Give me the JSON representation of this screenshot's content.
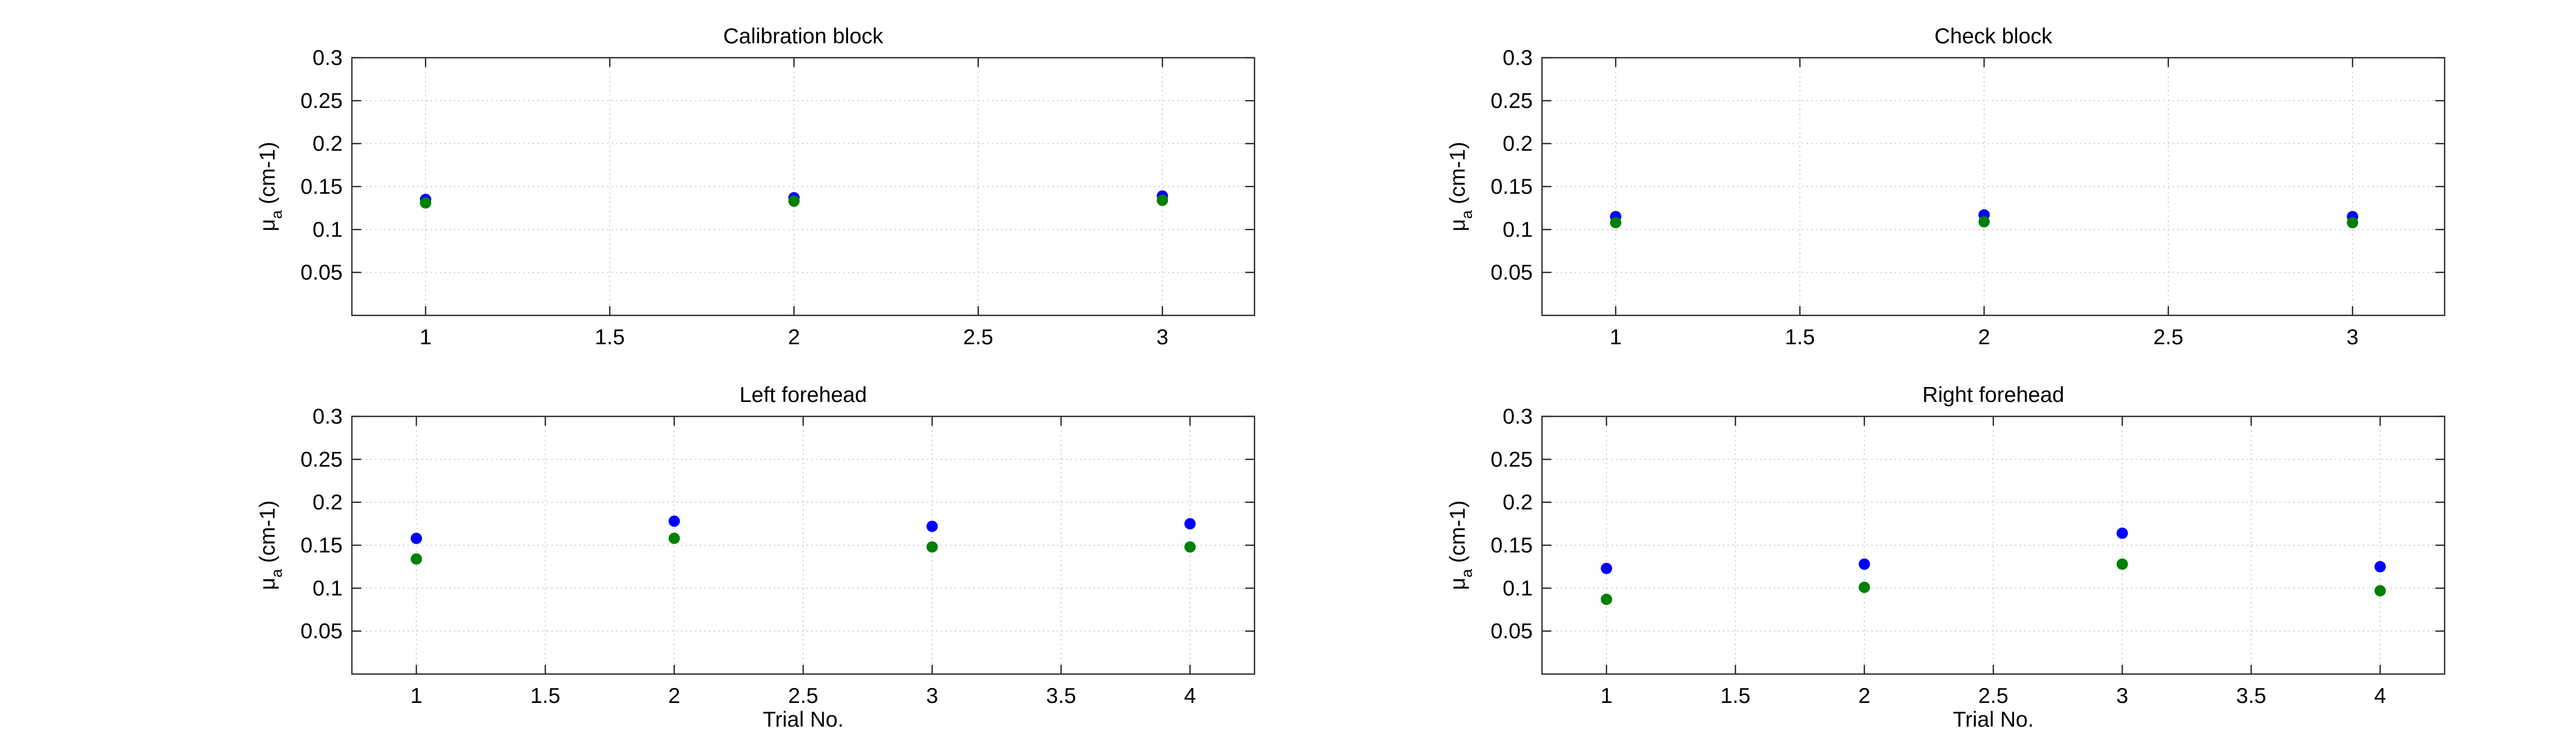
{
  "chart_data": [
    {
      "type": "scatter",
      "title": "Calibration block",
      "xlabel": "",
      "ylabel_symbol": "μ",
      "ylabel_sub": "a",
      "ylabel_rest": " (cm-1)",
      "xlim": [
        0.8,
        3.25
      ],
      "ylim": [
        0,
        0.3
      ],
      "xticks": [
        1,
        1.5,
        2,
        2.5,
        3
      ],
      "xtick_labels": [
        "1",
        "1.5",
        "2",
        "2.5",
        "3"
      ],
      "yticks": [
        0.05,
        0.1,
        0.15,
        0.2,
        0.25,
        0.3
      ],
      "ytick_labels": [
        "0.05",
        "0.1",
        "0.15",
        "0.2",
        "0.25",
        "0.3"
      ],
      "grid": true,
      "series": [
        {
          "color": "#0000ff",
          "x": [
            1,
            2,
            3
          ],
          "y": [
            0.135,
            0.137,
            0.139
          ]
        },
        {
          "color": "#008000",
          "x": [
            1,
            2,
            3
          ],
          "y": [
            0.131,
            0.133,
            0.134
          ]
        }
      ]
    },
    {
      "type": "scatter",
      "title": "Check block",
      "xlabel": "",
      "ylabel_symbol": "μ",
      "ylabel_sub": "a",
      "ylabel_rest": " (cm-1)",
      "xlim": [
        0.8,
        3.25
      ],
      "ylim": [
        0,
        0.3
      ],
      "xticks": [
        1,
        1.5,
        2,
        2.5,
        3
      ],
      "xtick_labels": [
        "1",
        "1.5",
        "2",
        "2.5",
        "3"
      ],
      "yticks": [
        0.05,
        0.1,
        0.15,
        0.2,
        0.25,
        0.3
      ],
      "ytick_labels": [
        "0.05",
        "0.1",
        "0.15",
        "0.2",
        "0.25",
        "0.3"
      ],
      "grid": true,
      "series": [
        {
          "color": "#0000ff",
          "x": [
            1,
            2,
            3
          ],
          "y": [
            0.115,
            0.117,
            0.115
          ]
        },
        {
          "color": "#008000",
          "x": [
            1,
            2,
            3
          ],
          "y": [
            0.108,
            0.109,
            0.108
          ]
        }
      ]
    },
    {
      "type": "scatter",
      "title": "Left forehead",
      "xlabel": "Trial No.",
      "ylabel_symbol": "μ",
      "ylabel_sub": "a",
      "ylabel_rest": " (cm-1)",
      "xlim": [
        0.75,
        4.25
      ],
      "ylim": [
        0,
        0.3
      ],
      "xticks": [
        1,
        1.5,
        2,
        2.5,
        3,
        3.5,
        4
      ],
      "xtick_labels": [
        "1",
        "1.5",
        "2",
        "2.5",
        "3",
        "3.5",
        "4"
      ],
      "yticks": [
        0.05,
        0.1,
        0.15,
        0.2,
        0.25,
        0.3
      ],
      "ytick_labels": [
        "0.05",
        "0.1",
        "0.15",
        "0.2",
        "0.25",
        "0.3"
      ],
      "grid": true,
      "series": [
        {
          "color": "#0000ff",
          "x": [
            1,
            2,
            3,
            4
          ],
          "y": [
            0.158,
            0.178,
            0.172,
            0.175
          ]
        },
        {
          "color": "#008000",
          "x": [
            1,
            2,
            3,
            4
          ],
          "y": [
            0.134,
            0.158,
            0.148,
            0.148
          ]
        }
      ]
    },
    {
      "type": "scatter",
      "title": "Right forehead",
      "xlabel": "Trial No.",
      "ylabel_symbol": "μ",
      "ylabel_sub": "a",
      "ylabel_rest": " (cm-1)",
      "xlim": [
        0.75,
        4.25
      ],
      "ylim": [
        0,
        0.3
      ],
      "xticks": [
        1,
        1.5,
        2,
        2.5,
        3,
        3.5,
        4
      ],
      "xtick_labels": [
        "1",
        "1.5",
        "2",
        "2.5",
        "3",
        "3.5",
        "4"
      ],
      "yticks": [
        0.05,
        0.1,
        0.15,
        0.2,
        0.25,
        0.3
      ],
      "ytick_labels": [
        "0.05",
        "0.1",
        "0.15",
        "0.2",
        "0.25",
        "0.3"
      ],
      "grid": true,
      "series": [
        {
          "color": "#0000ff",
          "x": [
            1,
            2,
            3,
            4
          ],
          "y": [
            0.123,
            0.128,
            0.164,
            0.125
          ]
        },
        {
          "color": "#008000",
          "x": [
            1,
            2,
            3,
            4
          ],
          "y": [
            0.087,
            0.101,
            0.128,
            0.097
          ]
        }
      ]
    }
  ]
}
